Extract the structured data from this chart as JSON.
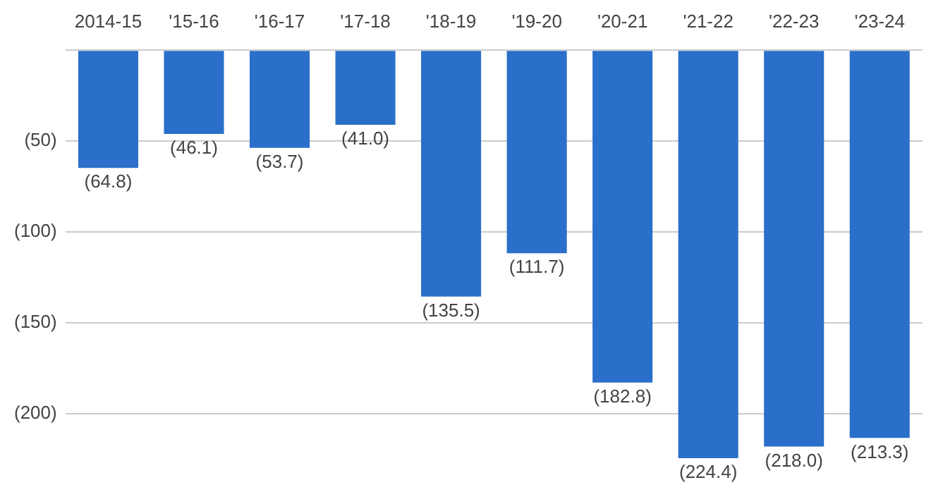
{
  "chart_data": {
    "type": "bar",
    "categories": [
      "2014-15",
      "'15-16",
      "'16-17",
      "'17-18",
      "'18-19",
      "'19-20",
      "'20-21",
      "'21-22",
      "'22-23",
      "'23-24"
    ],
    "values": [
      -64.8,
      -46.1,
      -53.7,
      -41.0,
      -135.5,
      -111.7,
      -182.8,
      -224.4,
      -218.0,
      -213.3
    ],
    "value_labels": [
      "(64.8)",
      "(46.1)",
      "(53.7)",
      "(41.0)",
      "(135.5)",
      "(111.7)",
      "(182.8)",
      "(224.4)",
      "(218.0)",
      "(213.3)"
    ],
    "color": "#2a6fc9",
    "ylim": [
      -224.4,
      0
    ],
    "yticks": [
      {
        "value": 0,
        "label": null
      },
      {
        "value": -50,
        "label": "(50)"
      },
      {
        "value": -100,
        "label": "(100)"
      },
      {
        "value": -150,
        "label": "(150)"
      },
      {
        "value": -200,
        "label": "(200)"
      }
    ],
    "grid": "y",
    "legend": false
  }
}
